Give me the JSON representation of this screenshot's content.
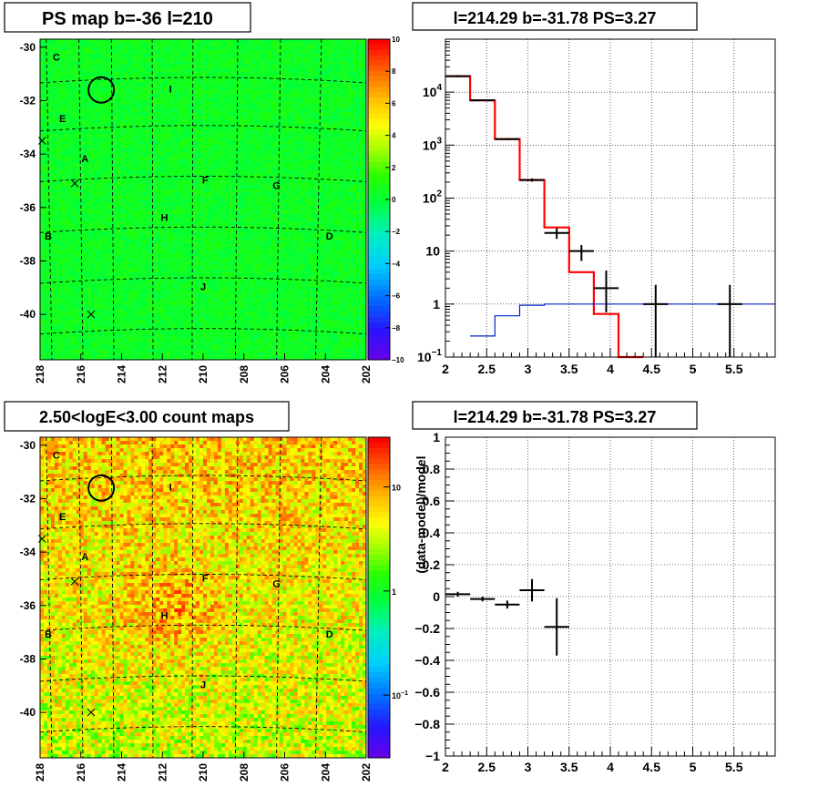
{
  "chart_data": [
    {
      "type": "heatmap",
      "title": "PS map b=-36 l=210",
      "x_ticks": [
        "218",
        "216",
        "214",
        "212",
        "210",
        "208",
        "206",
        "204",
        "202"
      ],
      "y_ticks": [
        "-30",
        "-32",
        "-34",
        "-36",
        "-38",
        "-40"
      ],
      "xlim": [
        218,
        202
      ],
      "ylim": [
        -41.7,
        -29.7
      ],
      "colorbar_ticks": [
        "10",
        "8",
        "6",
        "4",
        "2",
        "0",
        "-2",
        "-4",
        "-6",
        "-8",
        "-10"
      ],
      "colorbar_range": [
        -10,
        10
      ],
      "region_labels": [
        {
          "text": "C",
          "l": 217.2,
          "b": -30.5
        },
        {
          "text": "I",
          "l": 211.6,
          "b": -31.7
        },
        {
          "text": "E",
          "l": 216.9,
          "b": -32.8
        },
        {
          "text": "A",
          "l": 215.8,
          "b": -34.3
        },
        {
          "text": "F",
          "l": 209.9,
          "b": -35.1
        },
        {
          "text": "G",
          "l": 206.4,
          "b": -35.3
        },
        {
          "text": "H",
          "l": 211.9,
          "b": -36.5
        },
        {
          "text": "B",
          "l": 217.6,
          "b": -37.2
        },
        {
          "text": "D",
          "l": 203.8,
          "b": -37.2
        },
        {
          "text": "J",
          "l": 210.0,
          "b": -39.1
        }
      ],
      "circle": {
        "l": 215.0,
        "b": -31.6
      },
      "crosses": [
        {
          "l": 217.9,
          "b": -33.5
        },
        {
          "l": 216.3,
          "b": -35.1
        },
        {
          "l": 215.5,
          "b": -40.0
        }
      ]
    },
    {
      "type": "line",
      "title": "l=214.29 b=-31.78 PS=3.27",
      "xlim": [
        2,
        6
      ],
      "ylim": [
        0.1,
        100000
      ],
      "log_y": true,
      "x_ticks": [
        "2",
        "2.5",
        "3",
        "3.5",
        "4",
        "4.5",
        "5",
        "5.5"
      ],
      "y_ticks": [
        "10^-1",
        "1",
        "10",
        "10^2",
        "10^3",
        "10^4"
      ],
      "y_tick_labels": {
        "main": [
          "10",
          "1",
          "10",
          "10",
          "10",
          "10"
        ],
        "exp": [
          "−1",
          "",
          "",
          "2",
          "3",
          "4"
        ]
      },
      "grid": true,
      "series": [
        {
          "style": "red-step",
          "edges": [
            2,
            2.3,
            2.6,
            2.9,
            3.2,
            3.5,
            3.8,
            4.1,
            4.4
          ],
          "values": [
            20000,
            7000,
            1300,
            220,
            28,
            4,
            0.65,
            0.1
          ]
        },
        {
          "style": "blue-step",
          "edges": [
            2.3,
            2.6,
            2.9,
            3.2,
            6
          ],
          "values": [
            0.25,
            0.6,
            0.95,
            1.0
          ]
        },
        {
          "style": "black-errorbars",
          "points": [
            {
              "x": 2.15,
              "xerr": 0.15,
              "y": 20000,
              "ylo": 19000,
              "yhi": 21000
            },
            {
              "x": 2.45,
              "xerr": 0.15,
              "y": 7000,
              "ylo": 6800,
              "yhi": 7200
            },
            {
              "x": 2.75,
              "xerr": 0.15,
              "y": 1300,
              "ylo": 1250,
              "yhi": 1350
            },
            {
              "x": 3.05,
              "xerr": 0.15,
              "y": 220,
              "ylo": 205,
              "yhi": 235
            },
            {
              "x": 3.35,
              "xerr": 0.15,
              "y": 22,
              "ylo": 17,
              "yhi": 27
            },
            {
              "x": 3.65,
              "xerr": 0.15,
              "y": 10,
              "ylo": 6.5,
              "yhi": 13
            },
            {
              "x": 3.95,
              "xerr": 0.15,
              "y": 2,
              "ylo": 0.7,
              "yhi": 4.3
            },
            {
              "x": 4.55,
              "xerr": 0.15,
              "y": 1,
              "ylo": 0.1,
              "yhi": 2.3
            },
            {
              "x": 5.45,
              "xerr": 0.15,
              "y": 1,
              "ylo": 0.1,
              "yhi": 2.3
            }
          ]
        }
      ]
    },
    {
      "type": "heatmap",
      "title": "2.50<logE<3.00 count maps",
      "x_ticks": [
        "218",
        "216",
        "214",
        "212",
        "210",
        "208",
        "206",
        "204",
        "202"
      ],
      "y_ticks": [
        "-30",
        "-32",
        "-34",
        "-36",
        "-38",
        "-40"
      ],
      "xlim": [
        218,
        202
      ],
      "ylim": [
        -41.7,
        -29.7
      ],
      "colorbar_ticks": [
        {
          "main": "10",
          "exp": "",
          "v": 10
        },
        {
          "main": "1",
          "exp": "",
          "v": 1
        },
        {
          "main": "10",
          "exp": "−1",
          "v": 0.1
        }
      ],
      "colorbar_range_log": [
        0.025,
        30
      ],
      "region_labels": [
        {
          "text": "C",
          "l": 217.2,
          "b": -30.5
        },
        {
          "text": "I",
          "l": 211.6,
          "b": -31.7
        },
        {
          "text": "E",
          "l": 216.9,
          "b": -32.8
        },
        {
          "text": "A",
          "l": 215.8,
          "b": -34.3
        },
        {
          "text": "F",
          "l": 209.9,
          "b": -35.1
        },
        {
          "text": "G",
          "l": 206.4,
          "b": -35.3
        },
        {
          "text": "H",
          "l": 211.9,
          "b": -36.5
        },
        {
          "text": "B",
          "l": 217.6,
          "b": -37.2
        },
        {
          "text": "D",
          "l": 203.8,
          "b": -37.2
        },
        {
          "text": "J",
          "l": 210.0,
          "b": -39.1
        }
      ],
      "circle": {
        "l": 215.0,
        "b": -31.6
      },
      "crosses": [
        {
          "l": 217.9,
          "b": -33.5
        },
        {
          "l": 216.3,
          "b": -35.1
        },
        {
          "l": 215.5,
          "b": -40.0
        }
      ]
    },
    {
      "type": "scatter",
      "title": "l=214.29 b=-31.78 PS=3.27",
      "xlim": [
        2,
        6
      ],
      "ylim": [
        -1,
        1
      ],
      "ylabel": "(data-model)/model",
      "x_ticks": [
        "2",
        "2.5",
        "3",
        "3.5",
        "4",
        "4.5",
        "5",
        "5.5"
      ],
      "y_ticks": [
        "-1",
        "-0.8",
        "-0.6",
        "-0.4",
        "-0.2",
        "0",
        "0.2",
        "0.4",
        "0.6",
        "0.8",
        "1"
      ],
      "y_tick_labels": [
        "−1",
        "−0.8",
        "−0.6",
        "−0.4",
        "−0.2",
        "0",
        "0.2",
        "0.4",
        "0.6",
        "0.8",
        "1"
      ],
      "grid": true,
      "points": [
        {
          "x": 2.15,
          "xerr": 0.15,
          "y": 0.015,
          "yerr": 0.015
        },
        {
          "x": 2.45,
          "xerr": 0.15,
          "y": -0.015,
          "yerr": 0.015
        },
        {
          "x": 2.75,
          "xerr": 0.15,
          "y": -0.05,
          "yerr": 0.025
        },
        {
          "x": 3.05,
          "xerr": 0.15,
          "y": 0.04,
          "yerr": 0.07
        },
        {
          "x": 3.35,
          "xerr": 0.15,
          "y": -0.19,
          "yerr": 0.18
        }
      ]
    }
  ]
}
